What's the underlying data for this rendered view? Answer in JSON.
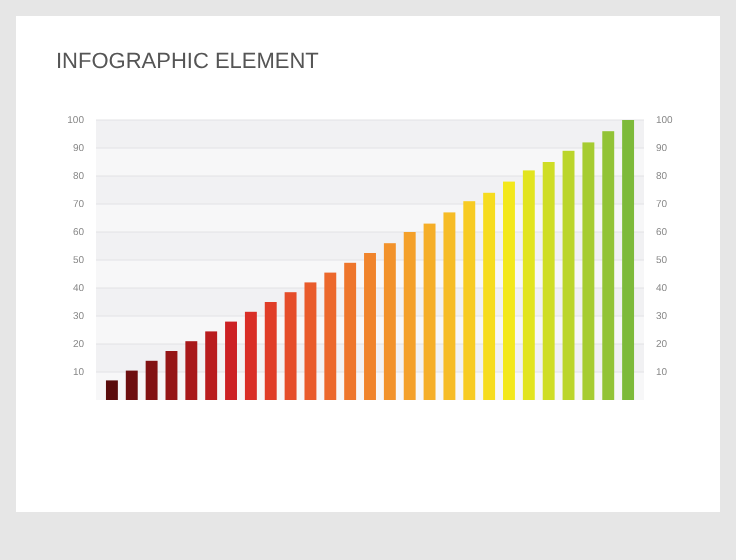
{
  "chart_data": {
    "type": "bar",
    "title": "INFOGRAPHIC ELEMENT",
    "categories": [
      null,
      null,
      null,
      null,
      null,
      null,
      null,
      null,
      null,
      null,
      null,
      null,
      null,
      null,
      null,
      null,
      null,
      null,
      null,
      null,
      null,
      null,
      null,
      null,
      null,
      null,
      null
    ],
    "values": [
      7,
      10.5,
      14,
      17.5,
      21,
      24.5,
      28,
      31.5,
      35,
      38.5,
      42,
      45.5,
      49,
      52.5,
      56,
      60,
      63,
      67,
      71,
      74,
      78,
      82,
      85,
      89,
      92,
      96,
      100
    ],
    "colors": [
      "#5a0c0c",
      "#6e0f10",
      "#821213",
      "#951516",
      "#a8181a",
      "#b91c1e",
      "#cc2124",
      "#d92e27",
      "#e03d28",
      "#e54d2a",
      "#e95b2b",
      "#ec682c",
      "#ee762c",
      "#f0842c",
      "#f2922b",
      "#f4a02a",
      "#f5ae28",
      "#f6bc26",
      "#f7cb23",
      "#f6dc1f",
      "#f3e81c",
      "#e2e41f",
      "#cfdd25",
      "#bbd52b",
      "#a6cc31",
      "#92c336",
      "#7dba3a"
    ],
    "ylim": [
      0,
      100
    ],
    "yticks": [
      10,
      20,
      30,
      40,
      50,
      60,
      70,
      80,
      90,
      100
    ],
    "y2lim": [
      0,
      100
    ],
    "y2ticks": [
      10,
      20,
      30,
      40,
      50,
      60,
      70,
      80,
      90,
      100
    ],
    "grid": "y"
  }
}
